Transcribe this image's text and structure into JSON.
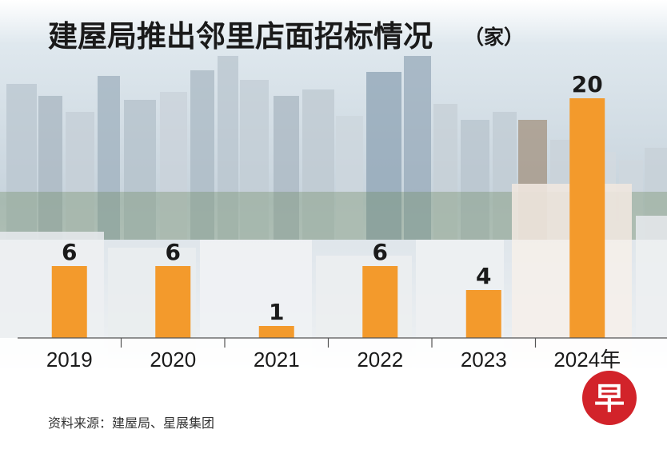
{
  "chart_data": {
    "type": "bar",
    "title": "建屋局推出邻里店面招标情况",
    "title_unit": "（家）",
    "categories": [
      "2019",
      "2020",
      "2021",
      "2022",
      "2023",
      "2024年"
    ],
    "values": [
      6,
      6,
      1,
      6,
      4,
      20
    ],
    "ylim": [
      0,
      20
    ],
    "xlabel": "",
    "ylabel": "",
    "grid": false,
    "bar_color": "#f39a2c",
    "source": "资料来源：建屋局、星展集团"
  },
  "logo": {
    "glyph": "早",
    "color": "#d2232a"
  },
  "background": {
    "depicts": "city-skyline-photo"
  }
}
